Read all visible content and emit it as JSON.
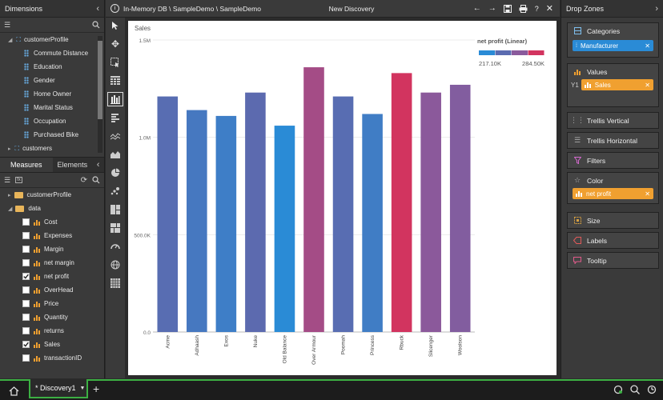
{
  "left": {
    "dimensions_title": "Dimensions",
    "dimension_tree": {
      "root": "customerProfile",
      "children": [
        "Commute Distance",
        "Education",
        "Gender",
        "Home Owner",
        "Marital Status",
        "Occupation",
        "Purchased Bike"
      ],
      "next_root": "customers"
    },
    "tabs": [
      "Measures",
      "Elements"
    ],
    "measures_tree": {
      "folders": [
        "customerProfile",
        "data"
      ],
      "items": [
        {
          "label": "Cost",
          "checked": false
        },
        {
          "label": "Expenses",
          "checked": false
        },
        {
          "label": "Margin",
          "checked": false
        },
        {
          "label": "net margin",
          "checked": false
        },
        {
          "label": "net profit",
          "checked": true
        },
        {
          "label": "OverHead",
          "checked": false
        },
        {
          "label": "Price",
          "checked": false
        },
        {
          "label": "Quantity",
          "checked": false
        },
        {
          "label": "returns",
          "checked": false
        },
        {
          "label": "Sales",
          "checked": true
        },
        {
          "label": "transactionID",
          "checked": false
        }
      ]
    }
  },
  "header": {
    "breadcrumb": "In-Memory DB \\ SampleDemo \\ SampleDemo",
    "title": "New Discovery"
  },
  "right": {
    "title": "Drop Zones",
    "zones": {
      "categories": "Categories",
      "categories_pill": "Manufacturer",
      "values": "Values",
      "values_axis": "Y1",
      "values_pill": "Sales",
      "trellis_vertical": "Trellis Vertical",
      "trellis_horizontal": "Trellis Horizontal",
      "filters": "Filters",
      "color": "Color",
      "color_pill": "net profit",
      "size": "Size",
      "labels": "Labels",
      "tooltip": "Tooltip"
    }
  },
  "bottom": {
    "tab_label": "* Discovery1"
  },
  "colors": {
    "accent_blue": "#2a8bd6",
    "accent_orange": "#f0a030",
    "active_green": "#3cb043"
  },
  "chart_data": {
    "type": "bar",
    "ylabel": "Sales",
    "yticks": [
      "0.0",
      "500.0K",
      "1.0M",
      "1.5M"
    ],
    "ylim": [
      0,
      1500000
    ],
    "grid": true,
    "categories": [
      "Acme",
      "Adhaash",
      "Exos",
      "Nuke",
      "Old Balance",
      "Over Armour",
      "Poomah",
      "Princess",
      "Rbuck",
      "Slicenger",
      "Woolson"
    ],
    "values": [
      1210000,
      1140000,
      1110000,
      1230000,
      1060000,
      1360000,
      1210000,
      1120000,
      1330000,
      1230000,
      1270000
    ],
    "net_profit": [
      238000,
      230000,
      226000,
      240000,
      217100,
      270000,
      238000,
      227000,
      284500,
      262000,
      258000
    ],
    "legend": {
      "title": "net profit (Linear)",
      "min_label": "217.10K",
      "max_label": "284.50K",
      "min": 217100,
      "max": 284500,
      "colors": [
        "#2a8bd6",
        "#5b6bb0",
        "#8a5a9c",
        "#d2345f"
      ],
      "placement": "top-right"
    }
  }
}
